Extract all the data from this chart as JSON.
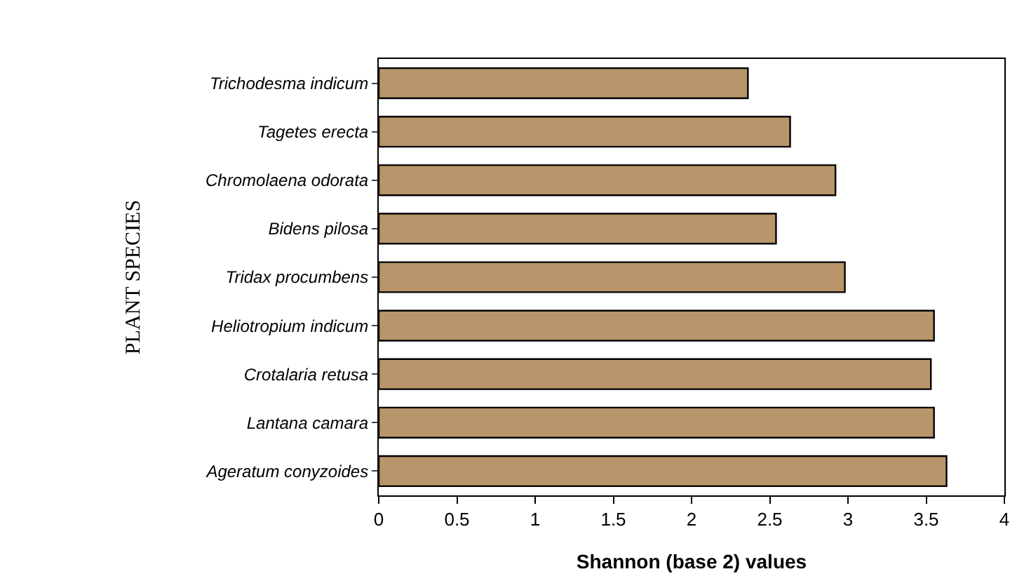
{
  "chart_data": {
    "type": "bar",
    "orientation": "horizontal",
    "xlabel": "Shannon (base 2) values",
    "ylabel": "PLANT SPECIES",
    "categories": [
      "Trichodesma indicum",
      "Tagetes erecta",
      "Chromolaena odorata",
      "Bidens pilosa",
      "Tridax procumbens",
      "Heliotropium indicum",
      "Crotalaria retusa",
      "Lantana camara",
      "Ageratum conyzoides"
    ],
    "values": [
      2.36,
      2.63,
      2.92,
      2.54,
      2.98,
      3.55,
      3.53,
      3.55,
      3.63
    ],
    "color": "#b8956a",
    "xlim": [
      0,
      4
    ],
    "xticks": [
      0,
      0.5,
      1,
      1.5,
      2,
      2.5,
      3,
      3.5,
      4
    ],
    "grid": false,
    "legend": false
  }
}
